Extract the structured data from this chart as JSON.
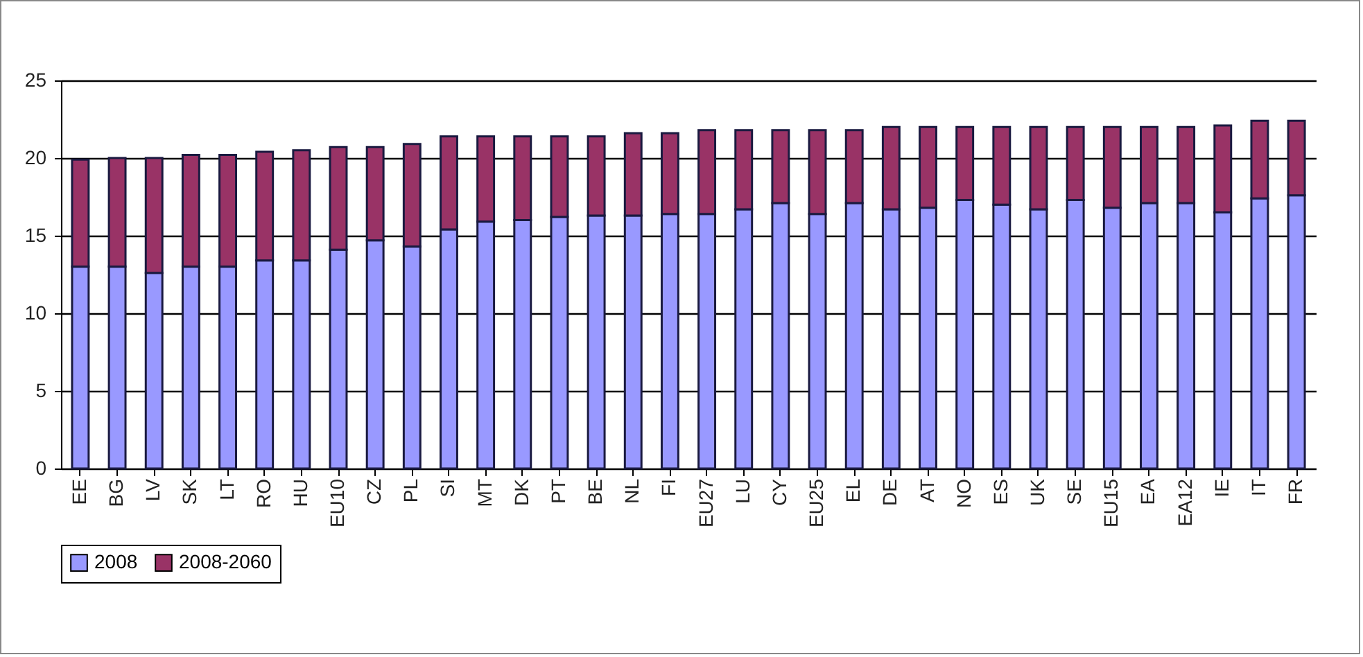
{
  "chart_data": {
    "type": "bar",
    "stacked": true,
    "categories": [
      "EE",
      "BG",
      "LV",
      "SK",
      "LT",
      "RO",
      "HU",
      "EU10",
      "CZ",
      "PL",
      "SI",
      "MT",
      "DK",
      "PT",
      "BE",
      "NL",
      "FI",
      "EU27",
      "LU",
      "CY",
      "EU25",
      "EL",
      "DE",
      "AT",
      "NO",
      "ES",
      "UK",
      "SE",
      "EU15",
      "EA",
      "EA12",
      "IE",
      "IT",
      "FR"
    ],
    "series": [
      {
        "name": "2008",
        "color": "#9999ff",
        "values": [
          13.0,
          13.0,
          12.6,
          13.0,
          13.0,
          13.4,
          13.4,
          14.1,
          14.7,
          14.3,
          15.4,
          15.9,
          16.0,
          16.2,
          16.3,
          16.3,
          16.4,
          16.4,
          16.7,
          17.1,
          16.4,
          17.1,
          16.7,
          16.8,
          17.3,
          17.0,
          16.7,
          17.3,
          16.8,
          17.1,
          17.1,
          16.5,
          17.4,
          17.6
        ]
      },
      {
        "name": "2008-2060",
        "color": "#993366",
        "values": [
          6.9,
          7.0,
          7.4,
          7.2,
          7.2,
          7.0,
          7.1,
          6.6,
          6.0,
          6.6,
          6.0,
          5.5,
          5.4,
          5.2,
          5.1,
          5.3,
          5.2,
          5.4,
          5.1,
          4.7,
          5.4,
          4.7,
          5.3,
          5.2,
          4.7,
          5.0,
          5.3,
          4.7,
          5.2,
          4.9,
          4.9,
          5.6,
          5.0,
          4.8
        ]
      }
    ],
    "ylim": [
      0,
      25
    ],
    "yticks": [
      0,
      5,
      10,
      15,
      20,
      25
    ],
    "grid": "y",
    "legend": "bottom"
  }
}
